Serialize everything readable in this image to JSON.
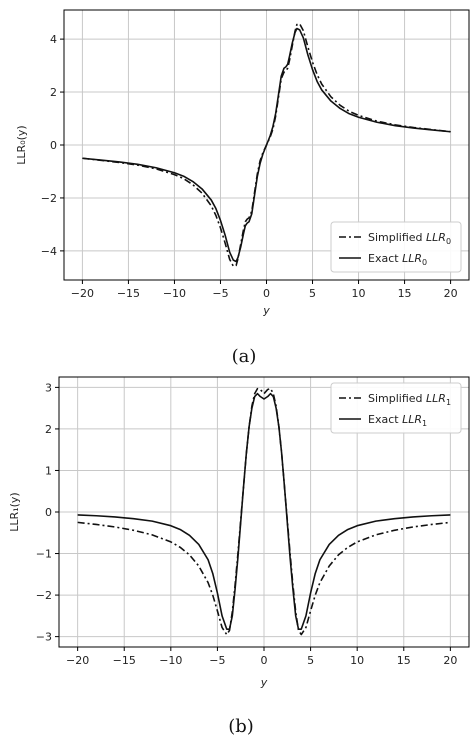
{
  "chart_data": [
    {
      "type": "line",
      "caption": "(a)",
      "xlabel": "y",
      "ylabel": "LLR₀(y)",
      "xlim": [
        -22,
        22
      ],
      "ylim": [
        -5.1,
        5.1
      ],
      "xticks": [
        -20,
        -15,
        -10,
        -5,
        0,
        5,
        10,
        15,
        20
      ],
      "yticks": [
        -4,
        -2,
        0,
        2,
        4
      ],
      "grid": true,
      "legend_position": "bottom-right",
      "series": [
        {
          "name": "Simplified LLR₀",
          "legend_main": "Simplified ",
          "legend_italic": "LLR",
          "legend_sub": "0",
          "style": "dashdot",
          "x": [
            -20,
            -18,
            -16,
            -14,
            -12,
            -10,
            -9,
            -8,
            -7,
            -6,
            -5.5,
            -5,
            -4.5,
            -4,
            -3.6,
            -3.3,
            -3.1,
            -2.8,
            -2.5,
            -2.3,
            -2.1,
            -1.9,
            -1.6,
            -1.3,
            -1,
            -0.7,
            -0.4,
            0,
            0.4,
            0.7,
            1,
            1.3,
            1.6,
            1.9,
            2.1,
            2.3,
            2.5,
            2.8,
            3.1,
            3.3,
            3.6,
            4,
            4.5,
            5,
            5.5,
            6,
            7,
            8,
            9,
            10,
            12,
            14,
            16,
            18,
            20
          ],
          "y": [
            -0.5,
            -0.58,
            -0.66,
            -0.76,
            -0.9,
            -1.12,
            -1.27,
            -1.5,
            -1.82,
            -2.3,
            -2.66,
            -3.13,
            -3.7,
            -4.32,
            -4.58,
            -4.55,
            -4.3,
            -3.75,
            -3.2,
            -2.9,
            -2.8,
            -2.75,
            -2.5,
            -1.8,
            -1.1,
            -0.6,
            -0.3,
            0,
            0.3,
            0.6,
            1.1,
            1.8,
            2.5,
            2.75,
            2.8,
            2.9,
            3.2,
            3.75,
            4.3,
            4.55,
            4.58,
            4.32,
            3.7,
            3.13,
            2.66,
            2.3,
            1.82,
            1.5,
            1.27,
            1.12,
            0.9,
            0.76,
            0.66,
            0.58,
            0.5
          ]
        },
        {
          "name": "Exact LLR₀",
          "legend_main": "Exact ",
          "legend_italic": "LLR",
          "legend_sub": "0",
          "style": "solid",
          "x": [
            -20,
            -18,
            -16,
            -14,
            -12,
            -10,
            -9,
            -8,
            -7,
            -6,
            -5.5,
            -5,
            -4.5,
            -4,
            -3.6,
            -3.3,
            -3.1,
            -2.8,
            -2.5,
            -2.3,
            -2.1,
            -1.9,
            -1.6,
            -1.3,
            -1,
            -0.7,
            -0.4,
            0,
            0.4,
            0.7,
            1,
            1.3,
            1.6,
            1.9,
            2.1,
            2.3,
            2.5,
            2.8,
            3.1,
            3.3,
            3.6,
            4,
            4.5,
            5,
            5.5,
            6,
            7,
            8,
            9,
            10,
            12,
            14,
            16,
            18,
            20
          ],
          "y": [
            -0.5,
            -0.57,
            -0.64,
            -0.73,
            -0.86,
            -1.05,
            -1.18,
            -1.38,
            -1.66,
            -2.08,
            -2.4,
            -2.85,
            -3.4,
            -4.05,
            -4.35,
            -4.4,
            -4.25,
            -3.85,
            -3.35,
            -3.05,
            -2.95,
            -2.9,
            -2.6,
            -1.9,
            -1.2,
            -0.7,
            -0.35,
            0,
            0.35,
            0.7,
            1.2,
            1.9,
            2.6,
            2.9,
            2.95,
            3.05,
            3.35,
            3.85,
            4.25,
            4.4,
            4.35,
            4.05,
            3.4,
            2.85,
            2.4,
            2.08,
            1.66,
            1.38,
            1.18,
            1.05,
            0.86,
            0.73,
            0.64,
            0.57,
            0.5
          ]
        }
      ]
    },
    {
      "type": "line",
      "caption": "(b)",
      "xlabel": "y",
      "ylabel": "LLR₁(y)",
      "xlim": [
        -22,
        22
      ],
      "ylim": [
        -3.25,
        3.25
      ],
      "xticks": [
        -20,
        -15,
        -10,
        -5,
        0,
        5,
        10,
        15,
        20
      ],
      "yticks": [
        -3,
        -2,
        -1,
        0,
        1,
        2,
        3
      ],
      "grid": true,
      "legend_position": "top-right",
      "series": [
        {
          "name": "Simplified LLR₁",
          "legend_main": "Simplified ",
          "legend_italic": "LLR",
          "legend_sub": "1",
          "style": "dashdot",
          "x": [
            -20,
            -18,
            -16,
            -14,
            -12,
            -10,
            -9,
            -8,
            -7,
            -6,
            -5.5,
            -5,
            -4.5,
            -4,
            -3.7,
            -3.4,
            -3.1,
            -2.8,
            -2.5,
            -2.2,
            -1.9,
            -1.6,
            -1.3,
            -1,
            -0.7,
            -0.4,
            0,
            0.4,
            0.7,
            1,
            1.3,
            1.6,
            1.9,
            2.2,
            2.5,
            2.8,
            3.1,
            3.4,
            3.7,
            4,
            4.5,
            5,
            5.5,
            6,
            7,
            8,
            9,
            10,
            12,
            14,
            16,
            18,
            20
          ],
          "y": [
            -0.25,
            -0.3,
            -0.36,
            -0.44,
            -0.55,
            -0.72,
            -0.85,
            -1.03,
            -1.3,
            -1.7,
            -2.0,
            -2.38,
            -2.78,
            -2.95,
            -2.85,
            -2.4,
            -1.75,
            -1.0,
            -0.2,
            0.6,
            1.4,
            2.05,
            2.55,
            2.85,
            2.97,
            2.95,
            2.85,
            2.95,
            2.97,
            2.85,
            2.55,
            2.05,
            1.4,
            0.6,
            -0.2,
            -1.0,
            -1.75,
            -2.4,
            -2.85,
            -2.95,
            -2.78,
            -2.38,
            -2.0,
            -1.7,
            -1.3,
            -1.03,
            -0.85,
            -0.72,
            -0.55,
            -0.44,
            -0.36,
            -0.3,
            -0.25
          ]
        },
        {
          "name": "Exact LLR₁",
          "legend_main": "Exact ",
          "legend_italic": "LLR",
          "legend_sub": "1",
          "style": "solid",
          "x": [
            -20,
            -18,
            -16,
            -14,
            -12,
            -10,
            -9,
            -8,
            -7,
            -6,
            -5.5,
            -5,
            -4.5,
            -4,
            -3.7,
            -3.4,
            -3.1,
            -2.8,
            -2.5,
            -2.2,
            -1.9,
            -1.6,
            -1.3,
            -1,
            -0.7,
            -0.4,
            0,
            0.4,
            0.7,
            1,
            1.3,
            1.6,
            1.9,
            2.2,
            2.5,
            2.8,
            3.1,
            3.4,
            3.7,
            4,
            4.5,
            5,
            5.5,
            6,
            7,
            8,
            9,
            10,
            12,
            14,
            16,
            18,
            20
          ],
          "y": [
            -0.07,
            -0.09,
            -0.12,
            -0.16,
            -0.22,
            -0.33,
            -0.42,
            -0.56,
            -0.78,
            -1.15,
            -1.48,
            -1.95,
            -2.5,
            -2.82,
            -2.82,
            -2.5,
            -1.85,
            -1.1,
            -0.25,
            0.6,
            1.4,
            2.05,
            2.5,
            2.78,
            2.85,
            2.78,
            2.72,
            2.78,
            2.85,
            2.78,
            2.5,
            2.05,
            1.4,
            0.6,
            -0.25,
            -1.1,
            -1.85,
            -2.5,
            -2.82,
            -2.82,
            -2.5,
            -1.95,
            -1.48,
            -1.15,
            -0.78,
            -0.56,
            -0.42,
            -0.33,
            -0.22,
            -0.16,
            -0.12,
            -0.09,
            -0.07
          ]
        }
      ]
    }
  ]
}
